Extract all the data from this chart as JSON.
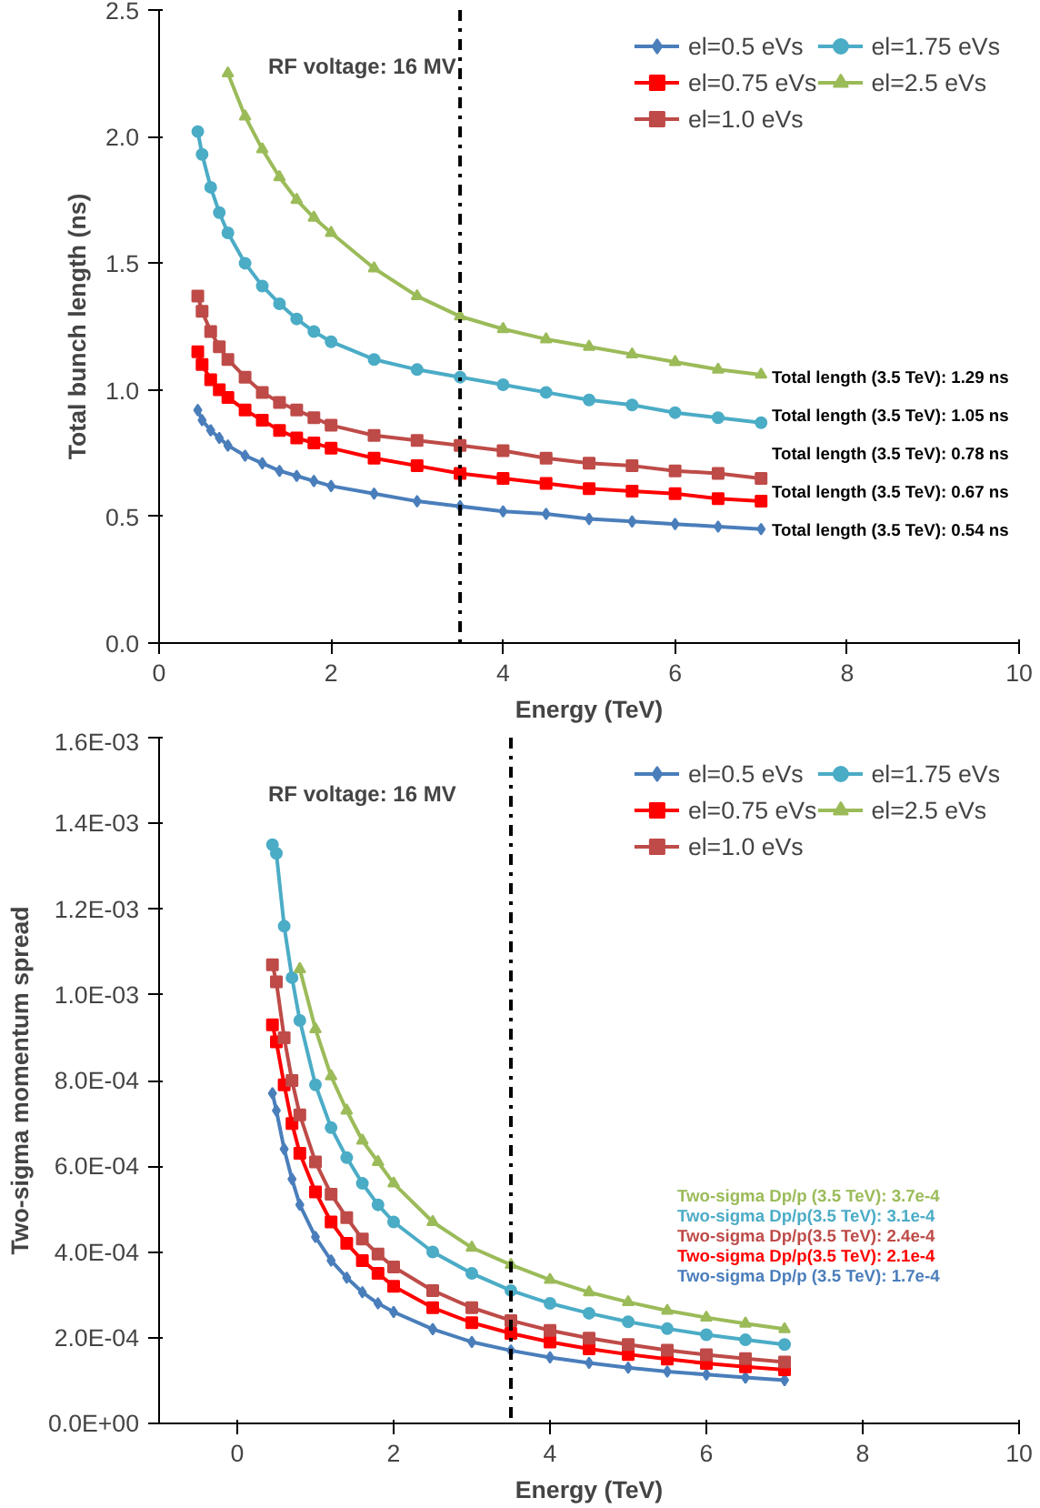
{
  "chart_data": [
    {
      "type": "line",
      "xlabel": "Energy (TeV)",
      "ylabel": "Total bunch length (ns)",
      "xlim": [
        0,
        10
      ],
      "ylim": [
        0,
        2.5
      ],
      "xticks": [
        0,
        2,
        4,
        6,
        8,
        10
      ],
      "yticks": [
        {
          "value": 0,
          "label": "0.0"
        },
        {
          "value": 0.5,
          "label": "0.5"
        },
        {
          "value": 1,
          "label": "1.0"
        },
        {
          "value": 1.5,
          "label": "1.5"
        },
        {
          "value": 2,
          "label": "2.0"
        },
        {
          "value": 2.5,
          "label": "2.5"
        }
      ],
      "grid": false,
      "legend": "top right",
      "line_style": "solid",
      "x": [
        0.45,
        0.5,
        0.6,
        0.7,
        0.8,
        1.0,
        1.2,
        1.4,
        1.6,
        1.8,
        2.0,
        2.5,
        3.0,
        3.5,
        4.0,
        4.5,
        5.0,
        5.5,
        6.0,
        6.5,
        7.0
      ],
      "series": [
        {
          "name": "el=0.5 eVs",
          "color": "#4a7ebb",
          "marker": "diamond",
          "values": [
            0.92,
            0.88,
            0.84,
            0.81,
            0.78,
            0.74,
            0.71,
            0.68,
            0.66,
            0.64,
            0.62,
            0.59,
            0.56,
            0.54,
            0.52,
            0.51,
            0.49,
            0.48,
            0.47,
            0.46,
            0.45
          ]
        },
        {
          "name": "el=0.75 eVs",
          "color": "#ff0000",
          "marker": "square",
          "values": [
            1.15,
            1.1,
            1.04,
            1.0,
            0.97,
            0.92,
            0.88,
            0.84,
            0.81,
            0.79,
            0.77,
            0.73,
            0.7,
            0.67,
            0.65,
            0.63,
            0.61,
            0.6,
            0.59,
            0.57,
            0.56
          ]
        },
        {
          "name": "el=1.0 eVs",
          "color": "#be4b48",
          "marker": "square",
          "values": [
            1.37,
            1.31,
            1.23,
            1.17,
            1.12,
            1.05,
            0.99,
            0.95,
            0.92,
            0.89,
            0.86,
            0.82,
            0.8,
            0.78,
            0.76,
            0.73,
            0.71,
            0.7,
            0.68,
            0.67,
            0.65
          ]
        },
        {
          "name": "el=1.75 eVs",
          "color": "#4bacc6",
          "marker": "circle",
          "values": [
            2.02,
            1.93,
            1.8,
            1.7,
            1.62,
            1.5,
            1.41,
            1.34,
            1.28,
            1.23,
            1.19,
            1.12,
            1.08,
            1.05,
            1.02,
            0.99,
            0.96,
            0.94,
            0.91,
            0.89,
            0.87
          ]
        },
        {
          "name": "el=2.5 eVs",
          "color": "#9bbb59",
          "marker": "triangle",
          "x": [
            0.8,
            1.0,
            1.2,
            1.4,
            1.6,
            1.8,
            2.0,
            2.5,
            3.0,
            3.5,
            4.0,
            4.5,
            5.0,
            5.5,
            6.0,
            6.5,
            7.0
          ],
          "values": [
            2.25,
            2.08,
            1.95,
            1.84,
            1.75,
            1.68,
            1.62,
            1.48,
            1.37,
            1.29,
            1.24,
            1.2,
            1.17,
            1.14,
            1.11,
            1.08,
            1.06
          ]
        }
      ],
      "ref_lines": [
        {
          "axis": "x",
          "value": 3.5,
          "color": "#000000",
          "line_style": "dashdot"
        }
      ],
      "annotations": [
        "RF voltage: 16 MV",
        "Total length (3.5 TeV): 1.29 ns",
        "Total length (3.5 TeV): 1.05 ns",
        "Total length (3.5 TeV): 0.78 ns",
        "Total length (3.5 TeV): 0.67 ns",
        "Total length (3.5 TeV): 0.54 ns"
      ]
    },
    {
      "type": "line",
      "xlabel": "Energy (TeV)",
      "ylabel": "Two-sigma momentum spread",
      "xlim": [
        -1,
        10
      ],
      "ylim": [
        0,
        0.0016
      ],
      "xticks": [
        0,
        2,
        4,
        6,
        8,
        10
      ],
      "yticks": [
        {
          "value": 0,
          "label": "0.0E+00"
        },
        {
          "value": 0.0002,
          "label": "2.0E-04"
        },
        {
          "value": 0.0004,
          "label": "4.0E-04"
        },
        {
          "value": 0.0006,
          "label": "6.0E-04"
        },
        {
          "value": 0.0008,
          "label": "8.0E-04"
        },
        {
          "value": 0.001,
          "label": "1.0E-03"
        },
        {
          "value": 0.0012,
          "label": "1.2E-03"
        },
        {
          "value": 0.0014,
          "label": "1.4E-03"
        },
        {
          "value": 0.0016,
          "label": "1.6E-03"
        }
      ],
      "grid": false,
      "legend": "top right",
      "line_style": "solid",
      "x": [
        0.45,
        0.5,
        0.6,
        0.7,
        0.8,
        1.0,
        1.2,
        1.4,
        1.6,
        1.8,
        2.0,
        2.5,
        3.0,
        3.5,
        4.0,
        4.5,
        5.0,
        5.5,
        6.0,
        6.5,
        7.0
      ],
      "series": [
        {
          "name": "el=0.5 eVs",
          "color": "#4a7ebb",
          "marker": "diamond",
          "values": [
            0.00077,
            0.00073,
            0.00064,
            0.00057,
            0.00051,
            0.000435,
            0.00038,
            0.00034,
            0.000306,
            0.00028,
            0.00026,
            0.00022,
            0.00019,
            0.00017,
            0.000154,
            0.000141,
            0.00013,
            0.000121,
            0.000114,
            0.000107,
            0.000101
          ]
        },
        {
          "name": "el=0.75 eVs",
          "color": "#ff0000",
          "marker": "square",
          "values": [
            0.00093,
            0.00089,
            0.00079,
            0.0007,
            0.00063,
            0.00054,
            0.00047,
            0.00042,
            0.00038,
            0.00035,
            0.00032,
            0.00027,
            0.000235,
            0.00021,
            0.00019,
            0.000174,
            0.000161,
            0.00015,
            0.00014,
            0.000132,
            0.000125
          ]
        },
        {
          "name": "el=1.0 eVs",
          "color": "#be4b48",
          "marker": "square",
          "values": [
            0.00107,
            0.00103,
            0.0009,
            0.0008,
            0.00072,
            0.00061,
            0.000535,
            0.00048,
            0.00043,
            0.000395,
            0.000365,
            0.00031,
            0.00027,
            0.00024,
            0.000217,
            0.000199,
            0.000184,
            0.000171,
            0.00016,
            0.000151,
            0.000143
          ]
        },
        {
          "name": "el=1.75 eVs",
          "color": "#4bacc6",
          "marker": "circle",
          "values": [
            0.00135,
            0.00133,
            0.00116,
            0.00104,
            0.00094,
            0.00079,
            0.00069,
            0.00062,
            0.00056,
            0.00051,
            0.00047,
            0.0004,
            0.00035,
            0.00031,
            0.00028,
            0.000257,
            0.000237,
            0.000221,
            0.000207,
            0.000195,
            0.000184
          ]
        },
        {
          "name": "el=2.5 eVs",
          "color": "#9bbb59",
          "marker": "triangle",
          "x": [
            0.8,
            1.0,
            1.2,
            1.4,
            1.6,
            1.8,
            2.0,
            2.5,
            3.0,
            3.5,
            4.0,
            4.5,
            5.0,
            5.5,
            6.0,
            6.5,
            7.0
          ],
          "values": [
            0.00106,
            0.00092,
            0.00081,
            0.00073,
            0.00066,
            0.00061,
            0.00056,
            0.00047,
            0.00041,
            0.00037,
            0.000335,
            0.000306,
            0.000283,
            0.000263,
            0.000247,
            0.000233,
            0.00022
          ]
        }
      ],
      "ref_lines": [
        {
          "axis": "x",
          "value": 3.5,
          "color": "#000000",
          "line_style": "dashdot"
        }
      ],
      "annotations": [
        "RF voltage: 16 MV",
        "Two-sigma Dp/p (3.5 TeV): 3.7e-4",
        "Two-sigma Dp/p(3.5 TeV): 3.1e-4",
        "Two-sigma Dp/p(3.5 TeV): 2.4e-4",
        "Two-sigma Dp/p(3.5 TeV): 2.1e-4",
        "Two-sigma Dp/p (3.5 TeV): 1.7e-4"
      ]
    }
  ]
}
